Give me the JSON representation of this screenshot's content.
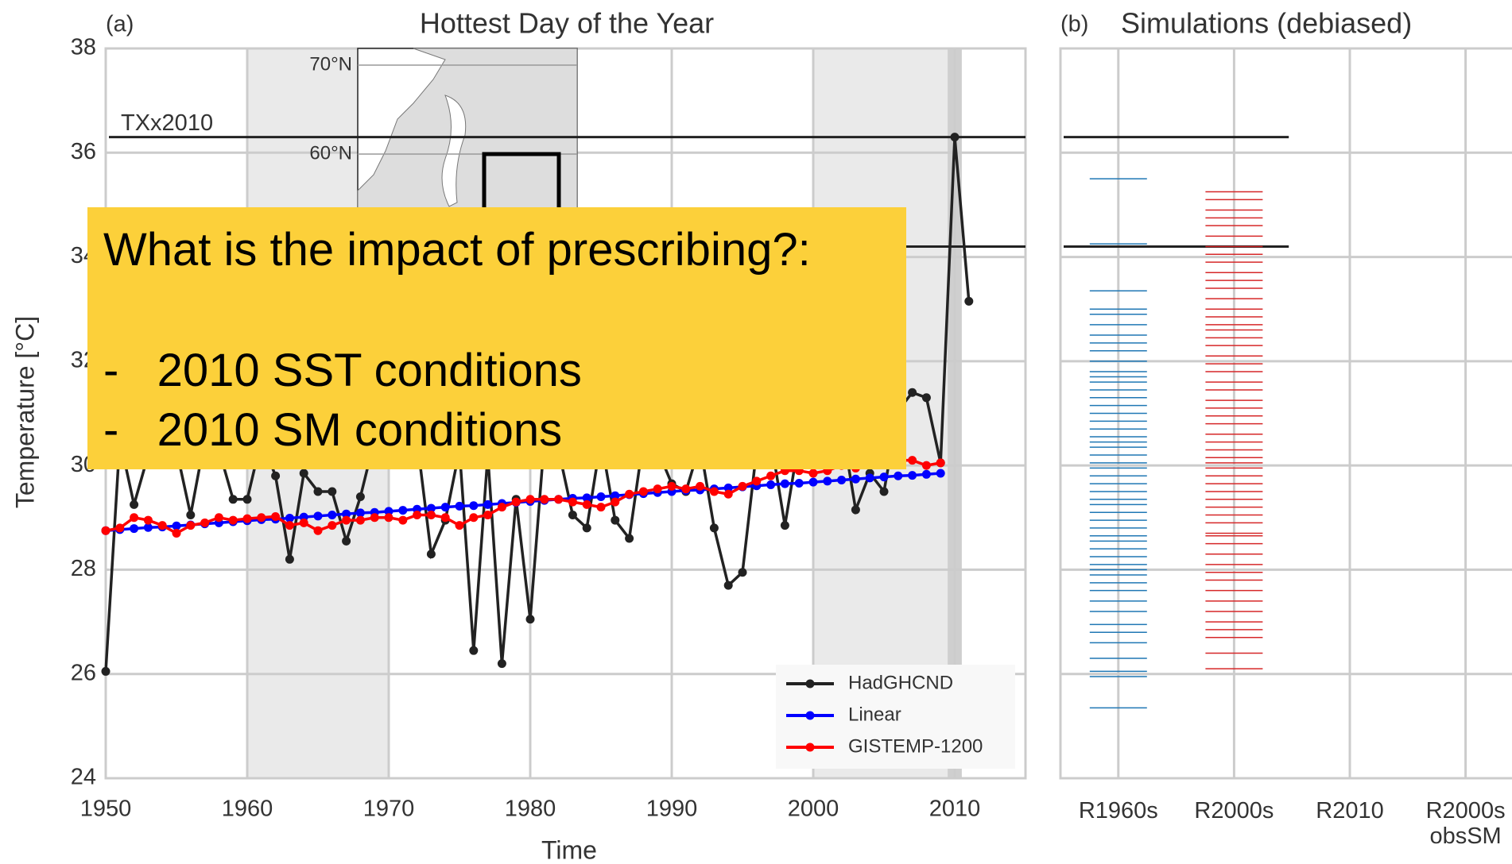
{
  "chart_data": [
    {
      "type": "line",
      "title": "Hottest Day of the Year",
      "panel_label": "(a)",
      "x_label": "Time",
      "y_label": "Temperature  [°C]",
      "x": [
        1950,
        1951,
        1952,
        1953,
        1954,
        1955,
        1956,
        1957,
        1958,
        1959,
        1960,
        1961,
        1962,
        1963,
        1964,
        1965,
        1966,
        1967,
        1968,
        1969,
        1970,
        1971,
        1972,
        1973,
        1974,
        1975,
        1976,
        1977,
        1978,
        1979,
        1980,
        1981,
        1982,
        1983,
        1984,
        1985,
        1986,
        1987,
        1988,
        1989,
        1990,
        1991,
        1992,
        1993,
        1994,
        1995,
        1996,
        1997,
        1998,
        1999,
        2000,
        2001,
        2002,
        2003,
        2004,
        2005,
        2006,
        2007,
        2008,
        2009,
        2010,
        2011
      ],
      "series": [
        {
          "name": "HadGHCND",
          "color": "#222222",
          "values": [
            26.05,
            30.5,
            29.25,
            30.2,
            30.5,
            30.3,
            29.05,
            30.5,
            30.3,
            29.35,
            29.35,
            30.5,
            29.8,
            28.2,
            29.85,
            29.5,
            29.5,
            28.55,
            29.4,
            30.5,
            30.5,
            30.8,
            30.5,
            28.3,
            28.95,
            30.3,
            26.45,
            30.2,
            26.2,
            29.35,
            27.05,
            30.5,
            30.3,
            29.05,
            28.8,
            30.5,
            28.95,
            28.6,
            30.5,
            30.3,
            29.65,
            29.5,
            30.4,
            28.8,
            27.7,
            27.95,
            30.3,
            30.5,
            28.85,
            30.5,
            30.3,
            30.5,
            30.8,
            29.15,
            29.85,
            29.5,
            31.05,
            31.4,
            31.3,
            30.05,
            36.3,
            33.15
          ]
        },
        {
          "name": "Linear",
          "color": "#0000ff",
          "values": [
            28.75,
            28.77,
            28.79,
            28.81,
            28.82,
            28.84,
            28.86,
            28.88,
            28.9,
            28.92,
            28.94,
            28.96,
            28.97,
            28.99,
            29.01,
            29.03,
            29.05,
            29.07,
            29.09,
            29.1,
            29.12,
            29.14,
            29.16,
            29.18,
            29.2,
            29.22,
            29.23,
            29.25,
            29.27,
            29.29,
            29.31,
            29.33,
            29.35,
            29.37,
            29.38,
            29.4,
            29.42,
            29.44,
            29.46,
            29.48,
            29.5,
            29.52,
            29.53,
            29.55,
            29.57,
            29.59,
            29.61,
            29.63,
            29.65,
            29.66,
            29.68,
            29.7,
            29.72,
            29.74,
            29.76,
            29.78,
            29.8,
            29.81,
            29.83,
            29.85,
            null,
            null
          ]
        },
        {
          "name": "GISTEMP-1200",
          "color": "#ff0000",
          "values": [
            28.75,
            28.8,
            29.0,
            28.95,
            28.85,
            28.7,
            28.85,
            28.9,
            29.0,
            28.95,
            28.98,
            29.0,
            29.02,
            28.85,
            28.9,
            28.75,
            28.85,
            28.95,
            28.95,
            29.0,
            29.0,
            28.95,
            29.05,
            29.05,
            29.0,
            28.85,
            29.0,
            29.05,
            29.2,
            29.3,
            29.35,
            29.35,
            29.35,
            29.3,
            29.25,
            29.2,
            29.3,
            29.45,
            29.5,
            29.55,
            29.6,
            29.55,
            29.6,
            29.5,
            29.45,
            29.6,
            29.7,
            29.8,
            29.9,
            29.9,
            29.85,
            29.9,
            30.0,
            29.95,
            30.05,
            30.05,
            30.1,
            30.1,
            30.0,
            30.05,
            null,
            null
          ]
        }
      ],
      "xlim": [
        1950,
        2015
      ],
      "ylim": [
        24,
        38
      ],
      "xticks": [
        1950,
        1960,
        1970,
        1980,
        1990,
        2000,
        2010
      ],
      "yticks": [
        24,
        26,
        28,
        30,
        32,
        34,
        36,
        38
      ],
      "grid": true,
      "legend": "lower right",
      "shaded_spans": [
        [
          1960,
          1970
        ],
        [
          2000,
          2010
        ]
      ],
      "highlight_span": [
        2009.5,
        2010.5
      ],
      "hlines": [
        {
          "value": 36.3,
          "label": "TXx2010"
        },
        {
          "value": 34.2
        }
      ],
      "inset": {
        "labels": [
          "70°N",
          "60°N"
        ]
      }
    },
    {
      "type": "strip",
      "title": "Simulations (debiased)",
      "panel_label": "(b)",
      "categories": [
        "R1960s",
        "R2000s",
        "R2010",
        "R2000s\nobsSM"
      ],
      "ylim": [
        24,
        38
      ],
      "hlines": [
        36.3,
        34.2
      ],
      "series": [
        {
          "color": "#1f77b4",
          "category": 0,
          "values": [
            35.5,
            34.25,
            33.35,
            33.0,
            32.9,
            32.7,
            32.5,
            32.35,
            32.2,
            32.0,
            31.8,
            31.7,
            31.6,
            31.45,
            31.3,
            31.15,
            31.0,
            30.85,
            30.7,
            30.55,
            30.45,
            30.35,
            30.2,
            30.05,
            29.95,
            29.8,
            29.65,
            29.5,
            29.35,
            29.25,
            29.1,
            28.95,
            28.8,
            28.65,
            28.55,
            28.4,
            28.25,
            28.1,
            28.0,
            27.9,
            27.75,
            27.6,
            27.4,
            27.2,
            26.95,
            26.8,
            26.6,
            26.3,
            26.05,
            25.95,
            25.35
          ]
        },
        {
          "color": "#d62728",
          "category": 1,
          "values": [
            35.25,
            35.1,
            34.9,
            34.75,
            34.6,
            34.4,
            34.2,
            34.05,
            33.9,
            33.7,
            33.55,
            33.4,
            33.2,
            33.0,
            32.85,
            32.7,
            32.6,
            32.45,
            32.3,
            32.1,
            31.95,
            31.8,
            31.6,
            31.45,
            31.25,
            31.1,
            30.95,
            30.8,
            30.6,
            30.45,
            30.3,
            30.15,
            30.05,
            29.95,
            29.8,
            29.65,
            29.5,
            29.35,
            29.2,
            29.05,
            28.9,
            28.7,
            28.65,
            28.5,
            28.3,
            28.1,
            27.95,
            27.8,
            27.6,
            27.4,
            27.2,
            27.0,
            26.85,
            26.7,
            26.4,
            26.1
          ]
        }
      ]
    }
  ],
  "overlay": {
    "lines": [
      "What is the impact of prescribing?:",
      "-   2010 SST conditions",
      "-   2010 SM conditions"
    ]
  }
}
